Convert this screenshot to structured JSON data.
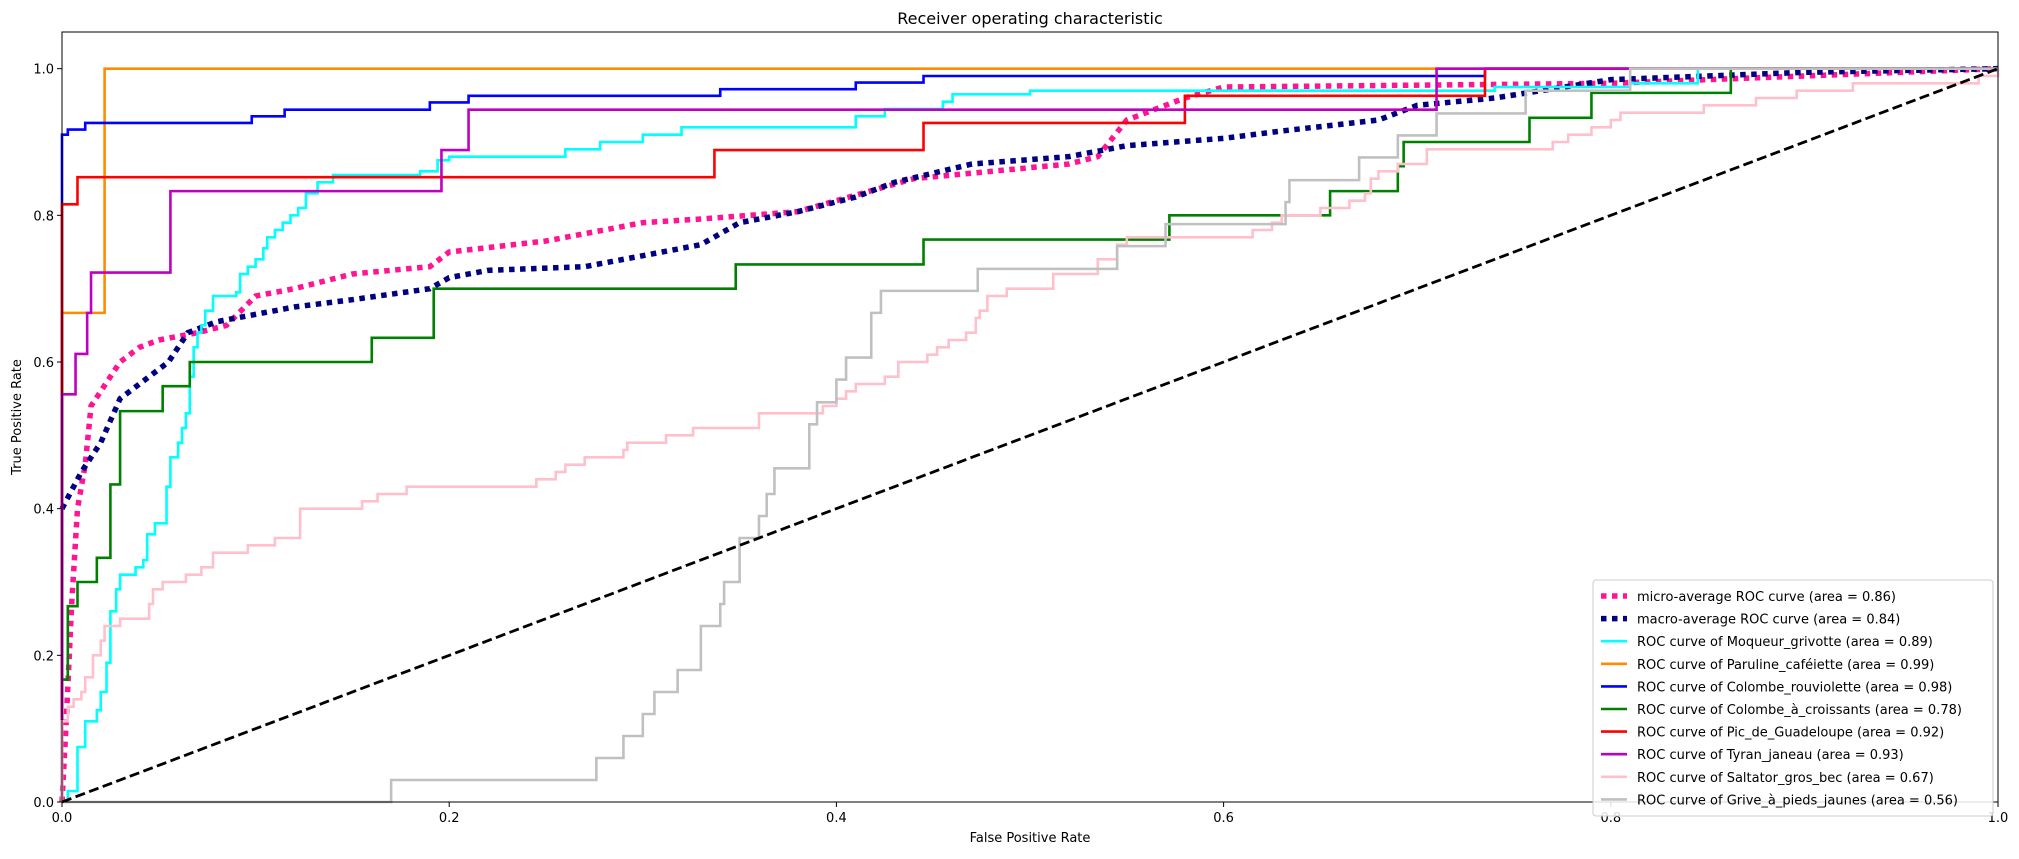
{
  "chart_data": {
    "type": "line",
    "title": "Receiver operating characteristic",
    "xlabel": "False Positive Rate",
    "ylabel": "True Positive Rate",
    "xlim": [
      0,
      1.0
    ],
    "ylim": [
      0,
      1.05
    ],
    "xticks": [
      "0.0",
      "0.2",
      "0.4",
      "0.6",
      "0.8",
      "1.0"
    ],
    "yticks": [
      "0.0",
      "0.2",
      "0.4",
      "0.6",
      "0.8",
      "1.0"
    ],
    "grid": false,
    "legend_position": "lower-right",
    "series": [
      {
        "name": "micro-average ROC curve (area = 0.86)",
        "color": "#ff1493",
        "style": "dotted",
        "step": false,
        "points": [
          [
            0,
            0
          ],
          [
            0.002,
            0.1
          ],
          [
            0.005,
            0.27
          ],
          [
            0.008,
            0.4
          ],
          [
            0.012,
            0.46
          ],
          [
            0.015,
            0.54
          ],
          [
            0.02,
            0.56
          ],
          [
            0.03,
            0.6
          ],
          [
            0.04,
            0.62
          ],
          [
            0.05,
            0.63
          ],
          [
            0.06,
            0.635
          ],
          [
            0.07,
            0.64
          ],
          [
            0.085,
            0.65
          ],
          [
            0.1,
            0.69
          ],
          [
            0.12,
            0.7
          ],
          [
            0.15,
            0.72
          ],
          [
            0.19,
            0.73
          ],
          [
            0.2,
            0.75
          ],
          [
            0.25,
            0.765
          ],
          [
            0.3,
            0.79
          ],
          [
            0.33,
            0.795
          ],
          [
            0.38,
            0.805
          ],
          [
            0.4,
            0.82
          ],
          [
            0.42,
            0.835
          ],
          [
            0.44,
            0.85
          ],
          [
            0.48,
            0.86
          ],
          [
            0.52,
            0.87
          ],
          [
            0.535,
            0.88
          ],
          [
            0.55,
            0.93
          ],
          [
            0.58,
            0.96
          ],
          [
            0.6,
            0.975
          ],
          [
            0.8,
            0.98
          ],
          [
            1,
            1
          ]
        ]
      },
      {
        "name": "macro-average ROC curve (area = 0.84)",
        "color": "#000080",
        "style": "dotted",
        "step": false,
        "points": [
          [
            0,
            0.4
          ],
          [
            0.01,
            0.45
          ],
          [
            0.02,
            0.49
          ],
          [
            0.03,
            0.55
          ],
          [
            0.045,
            0.58
          ],
          [
            0.055,
            0.6
          ],
          [
            0.065,
            0.64
          ],
          [
            0.08,
            0.655
          ],
          [
            0.12,
            0.675
          ],
          [
            0.15,
            0.685
          ],
          [
            0.19,
            0.7
          ],
          [
            0.2,
            0.715
          ],
          [
            0.22,
            0.725
          ],
          [
            0.27,
            0.73
          ],
          [
            0.3,
            0.745
          ],
          [
            0.33,
            0.76
          ],
          [
            0.35,
            0.79
          ],
          [
            0.38,
            0.805
          ],
          [
            0.41,
            0.825
          ],
          [
            0.43,
            0.845
          ],
          [
            0.47,
            0.87
          ],
          [
            0.52,
            0.88
          ],
          [
            0.55,
            0.895
          ],
          [
            0.6,
            0.905
          ],
          [
            0.63,
            0.915
          ],
          [
            0.68,
            0.93
          ],
          [
            0.7,
            0.95
          ],
          [
            0.74,
            0.96
          ],
          [
            0.8,
            0.985
          ],
          [
            0.9,
            0.995
          ],
          [
            1,
            1
          ]
        ]
      },
      {
        "name": "ROC curve of Moqueur_grivotte (area = 0.89)",
        "color": "#00ffff",
        "style": "solid",
        "step": true,
        "points": [
          [
            0,
            0
          ],
          [
            0.003,
            0.015
          ],
          [
            0.008,
            0.03
          ],
          [
            0.008,
            0.075
          ],
          [
            0.012,
            0.11
          ],
          [
            0.018,
            0.125
          ],
          [
            0.02,
            0.15
          ],
          [
            0.023,
            0.19
          ],
          [
            0.025,
            0.22
          ],
          [
            0.025,
            0.26
          ],
          [
            0.028,
            0.29
          ],
          [
            0.03,
            0.31
          ],
          [
            0.038,
            0.32
          ],
          [
            0.042,
            0.33
          ],
          [
            0.044,
            0.365
          ],
          [
            0.048,
            0.38
          ],
          [
            0.052,
            0.38
          ],
          [
            0.054,
            0.43
          ],
          [
            0.056,
            0.47
          ],
          [
            0.06,
            0.49
          ],
          [
            0.062,
            0.51
          ],
          [
            0.064,
            0.53
          ],
          [
            0.066,
            0.58
          ],
          [
            0.068,
            0.62
          ],
          [
            0.07,
            0.64
          ],
          [
            0.072,
            0.65
          ],
          [
            0.074,
            0.67
          ],
          [
            0.078,
            0.69
          ],
          [
            0.09,
            0.695
          ],
          [
            0.092,
            0.72
          ],
          [
            0.096,
            0.73
          ],
          [
            0.1,
            0.74
          ],
          [
            0.104,
            0.755
          ],
          [
            0.106,
            0.77
          ],
          [
            0.11,
            0.78
          ],
          [
            0.114,
            0.79
          ],
          [
            0.118,
            0.8
          ],
          [
            0.122,
            0.81
          ],
          [
            0.126,
            0.83
          ],
          [
            0.132,
            0.845
          ],
          [
            0.14,
            0.855
          ],
          [
            0.185,
            0.86
          ],
          [
            0.194,
            0.875
          ],
          [
            0.2,
            0.88
          ],
          [
            0.26,
            0.89
          ],
          [
            0.278,
            0.9
          ],
          [
            0.3,
            0.91
          ],
          [
            0.32,
            0.92
          ],
          [
            0.41,
            0.935
          ],
          [
            0.425,
            0.945
          ],
          [
            0.455,
            0.955
          ],
          [
            0.46,
            0.965
          ],
          [
            0.5,
            0.97
          ],
          [
            0.74,
            0.975
          ],
          [
            0.81,
            0.98
          ],
          [
            0.845,
            0.98
          ],
          [
            0.845,
            1
          ],
          [
            1,
            1
          ]
        ]
      },
      {
        "name": "ROC curve of Paruline_caféiette (area = 0.99)",
        "color": "#ff8c00",
        "style": "solid",
        "step": true,
        "points": [
          [
            0,
            0
          ],
          [
            0,
            0.667
          ],
          [
            0.022,
            1
          ],
          [
            1,
            1
          ]
        ]
      },
      {
        "name": "ROC curve of Colombe_rouviolette (area = 0.98)",
        "color": "#0000ff",
        "style": "solid",
        "step": true,
        "points": [
          [
            0,
            0
          ],
          [
            0,
            0.91
          ],
          [
            0.003,
            0.917
          ],
          [
            0.012,
            0.926
          ],
          [
            0.098,
            0.935
          ],
          [
            0.115,
            0.944
          ],
          [
            0.19,
            0.954
          ],
          [
            0.21,
            0.963
          ],
          [
            0.34,
            0.972
          ],
          [
            0.41,
            0.981
          ],
          [
            0.445,
            0.99
          ],
          [
            0.735,
            1
          ],
          [
            1,
            1
          ]
        ]
      },
      {
        "name": "ROC curve of Colombe_à_croissants (area = 0.78)",
        "color": "#008000",
        "style": "solid",
        "step": true,
        "points": [
          [
            0,
            0
          ],
          [
            0,
            0.167
          ],
          [
            0.003,
            0.267
          ],
          [
            0.008,
            0.3
          ],
          [
            0.018,
            0.333
          ],
          [
            0.025,
            0.433
          ],
          [
            0.03,
            0.533
          ],
          [
            0.052,
            0.567
          ],
          [
            0.066,
            0.6
          ],
          [
            0.16,
            0.633
          ],
          [
            0.192,
            0.7
          ],
          [
            0.348,
            0.733
          ],
          [
            0.445,
            0.767
          ],
          [
            0.572,
            0.8
          ],
          [
            0.655,
            0.833
          ],
          [
            0.69,
            0.867
          ],
          [
            0.693,
            0.9
          ],
          [
            0.758,
            0.933
          ],
          [
            0.79,
            0.967
          ],
          [
            0.862,
            1
          ],
          [
            1,
            1
          ]
        ]
      },
      {
        "name": "ROC curve of Pic_de_Guadeloupe (area = 0.92)",
        "color": "#ff0000",
        "style": "solid",
        "step": true,
        "points": [
          [
            0,
            0
          ],
          [
            0,
            0.815
          ],
          [
            0.008,
            0.852
          ],
          [
            0.337,
            0.889
          ],
          [
            0.445,
            0.926
          ],
          [
            0.58,
            0.963
          ],
          [
            0.735,
            1
          ],
          [
            1,
            1
          ]
        ]
      },
      {
        "name": "ROC curve of Tyran_janeau (area = 0.93)",
        "color": "#bf00bf",
        "style": "solid",
        "step": true,
        "points": [
          [
            0,
            0
          ],
          [
            0,
            0.556
          ],
          [
            0.007,
            0.611
          ],
          [
            0.013,
            0.667
          ],
          [
            0.015,
            0.722
          ],
          [
            0.056,
            0.833
          ],
          [
            0.196,
            0.889
          ],
          [
            0.21,
            0.944
          ],
          [
            0.71,
            1
          ],
          [
            1,
            1
          ]
        ]
      },
      {
        "name": "ROC curve of Saltator_gros_bec (area = 0.67)",
        "color": "#ffc0cb",
        "style": "solid",
        "step": true,
        "points": [
          [
            0,
            0
          ],
          [
            0,
            0.11
          ],
          [
            0.003,
            0.13
          ],
          [
            0.006,
            0.14
          ],
          [
            0.01,
            0.15
          ],
          [
            0.012,
            0.17
          ],
          [
            0.016,
            0.2
          ],
          [
            0.02,
            0.22
          ],
          [
            0.022,
            0.24
          ],
          [
            0.03,
            0.25
          ],
          [
            0.045,
            0.27
          ],
          [
            0.047,
            0.29
          ],
          [
            0.052,
            0.3
          ],
          [
            0.064,
            0.31
          ],
          [
            0.072,
            0.32
          ],
          [
            0.078,
            0.34
          ],
          [
            0.096,
            0.35
          ],
          [
            0.11,
            0.36
          ],
          [
            0.123,
            0.4
          ],
          [
            0.155,
            0.41
          ],
          [
            0.163,
            0.42
          ],
          [
            0.178,
            0.43
          ],
          [
            0.245,
            0.44
          ],
          [
            0.255,
            0.45
          ],
          [
            0.26,
            0.46
          ],
          [
            0.27,
            0.47
          ],
          [
            0.29,
            0.48
          ],
          [
            0.292,
            0.49
          ],
          [
            0.312,
            0.5
          ],
          [
            0.326,
            0.51
          ],
          [
            0.36,
            0.53
          ],
          [
            0.393,
            0.54
          ],
          [
            0.4,
            0.55
          ],
          [
            0.405,
            0.56
          ],
          [
            0.41,
            0.57
          ],
          [
            0.425,
            0.58
          ],
          [
            0.432,
            0.6
          ],
          [
            0.447,
            0.61
          ],
          [
            0.452,
            0.62
          ],
          [
            0.458,
            0.63
          ],
          [
            0.467,
            0.64
          ],
          [
            0.472,
            0.66
          ],
          [
            0.474,
            0.67
          ],
          [
            0.478,
            0.69
          ],
          [
            0.488,
            0.7
          ],
          [
            0.512,
            0.72
          ],
          [
            0.535,
            0.74
          ],
          [
            0.545,
            0.76
          ],
          [
            0.55,
            0.77
          ],
          [
            0.615,
            0.78
          ],
          [
            0.625,
            0.79
          ],
          [
            0.63,
            0.8
          ],
          [
            0.65,
            0.81
          ],
          [
            0.665,
            0.82
          ],
          [
            0.673,
            0.83
          ],
          [
            0.676,
            0.85
          ],
          [
            0.68,
            0.86
          ],
          [
            0.69,
            0.87
          ],
          [
            0.705,
            0.89
          ],
          [
            0.77,
            0.9
          ],
          [
            0.778,
            0.91
          ],
          [
            0.79,
            0.92
          ],
          [
            0.8,
            0.93
          ],
          [
            0.805,
            0.94
          ],
          [
            0.848,
            0.95
          ],
          [
            0.875,
            0.96
          ],
          [
            0.896,
            0.97
          ],
          [
            0.925,
            0.98
          ],
          [
            0.99,
            0.99
          ],
          [
            1,
            1
          ]
        ]
      },
      {
        "name": "ROC curve of Grive_à_pieds_jaunes (area = 0.56)",
        "color": "#c0c0c0",
        "style": "solid",
        "step": true,
        "points": [
          [
            0,
            0
          ],
          [
            0.17,
            0.03
          ],
          [
            0.276,
            0.06
          ],
          [
            0.29,
            0.09
          ],
          [
            0.3,
            0.12
          ],
          [
            0.306,
            0.15
          ],
          [
            0.318,
            0.18
          ],
          [
            0.33,
            0.24
          ],
          [
            0.34,
            0.27
          ],
          [
            0.342,
            0.3
          ],
          [
            0.35,
            0.36
          ],
          [
            0.36,
            0.39
          ],
          [
            0.364,
            0.42
          ],
          [
            0.368,
            0.455
          ],
          [
            0.386,
            0.515
          ],
          [
            0.39,
            0.545
          ],
          [
            0.4,
            0.576
          ],
          [
            0.405,
            0.606
          ],
          [
            0.418,
            0.667
          ],
          [
            0.423,
            0.697
          ],
          [
            0.473,
            0.727
          ],
          [
            0.545,
            0.758
          ],
          [
            0.57,
            0.788
          ],
          [
            0.632,
            0.818
          ],
          [
            0.634,
            0.848
          ],
          [
            0.67,
            0.879
          ],
          [
            0.69,
            0.909
          ],
          [
            0.71,
            0.939
          ],
          [
            0.756,
            0.97
          ],
          [
            0.81,
            1
          ],
          [
            1,
            1
          ]
        ]
      },
      {
        "name": "chance",
        "color": "#000000",
        "style": "dashed",
        "step": false,
        "in_legend": false,
        "points": [
          [
            0,
            0
          ],
          [
            1,
            1
          ]
        ]
      }
    ]
  }
}
